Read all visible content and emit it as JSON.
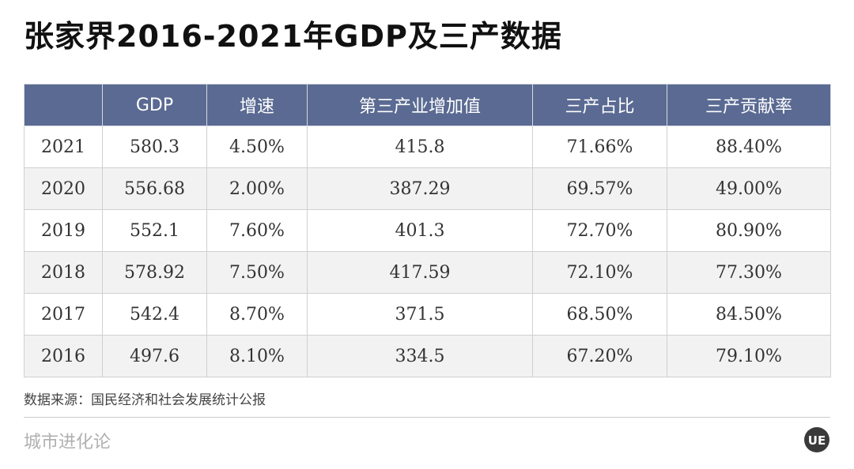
{
  "title": "张家界2016-2021年GDP及三产数据",
  "chart_data": {
    "type": "table",
    "columns": [
      "",
      "GDP",
      "增速",
      "第三产业增加值",
      "三产占比",
      "三产贡献率"
    ],
    "rows": [
      [
        "2021",
        "580.3",
        "4.50%",
        "415.8",
        "71.66%",
        "88.40%"
      ],
      [
        "2020",
        "556.68",
        "2.00%",
        "387.29",
        "69.57%",
        "49.00%"
      ],
      [
        "2019",
        "552.1",
        "7.60%",
        "401.3",
        "72.70%",
        "80.90%"
      ],
      [
        "2018",
        "578.92",
        "7.50%",
        "417.59",
        "72.10%",
        "77.30%"
      ],
      [
        "2017",
        "542.4",
        "8.70%",
        "371.5",
        "68.50%",
        "84.50%"
      ],
      [
        "2016",
        "497.6",
        "8.10%",
        "334.5",
        "67.20%",
        "79.10%"
      ]
    ]
  },
  "source": "数据来源：国民经济和社会发展统计公报",
  "brand": "城市进化论",
  "logo_text": "UE",
  "colors": {
    "header_bg": "#5a6a92",
    "header_text": "#ffffff",
    "row_alt_bg": "#f2f2f2"
  }
}
